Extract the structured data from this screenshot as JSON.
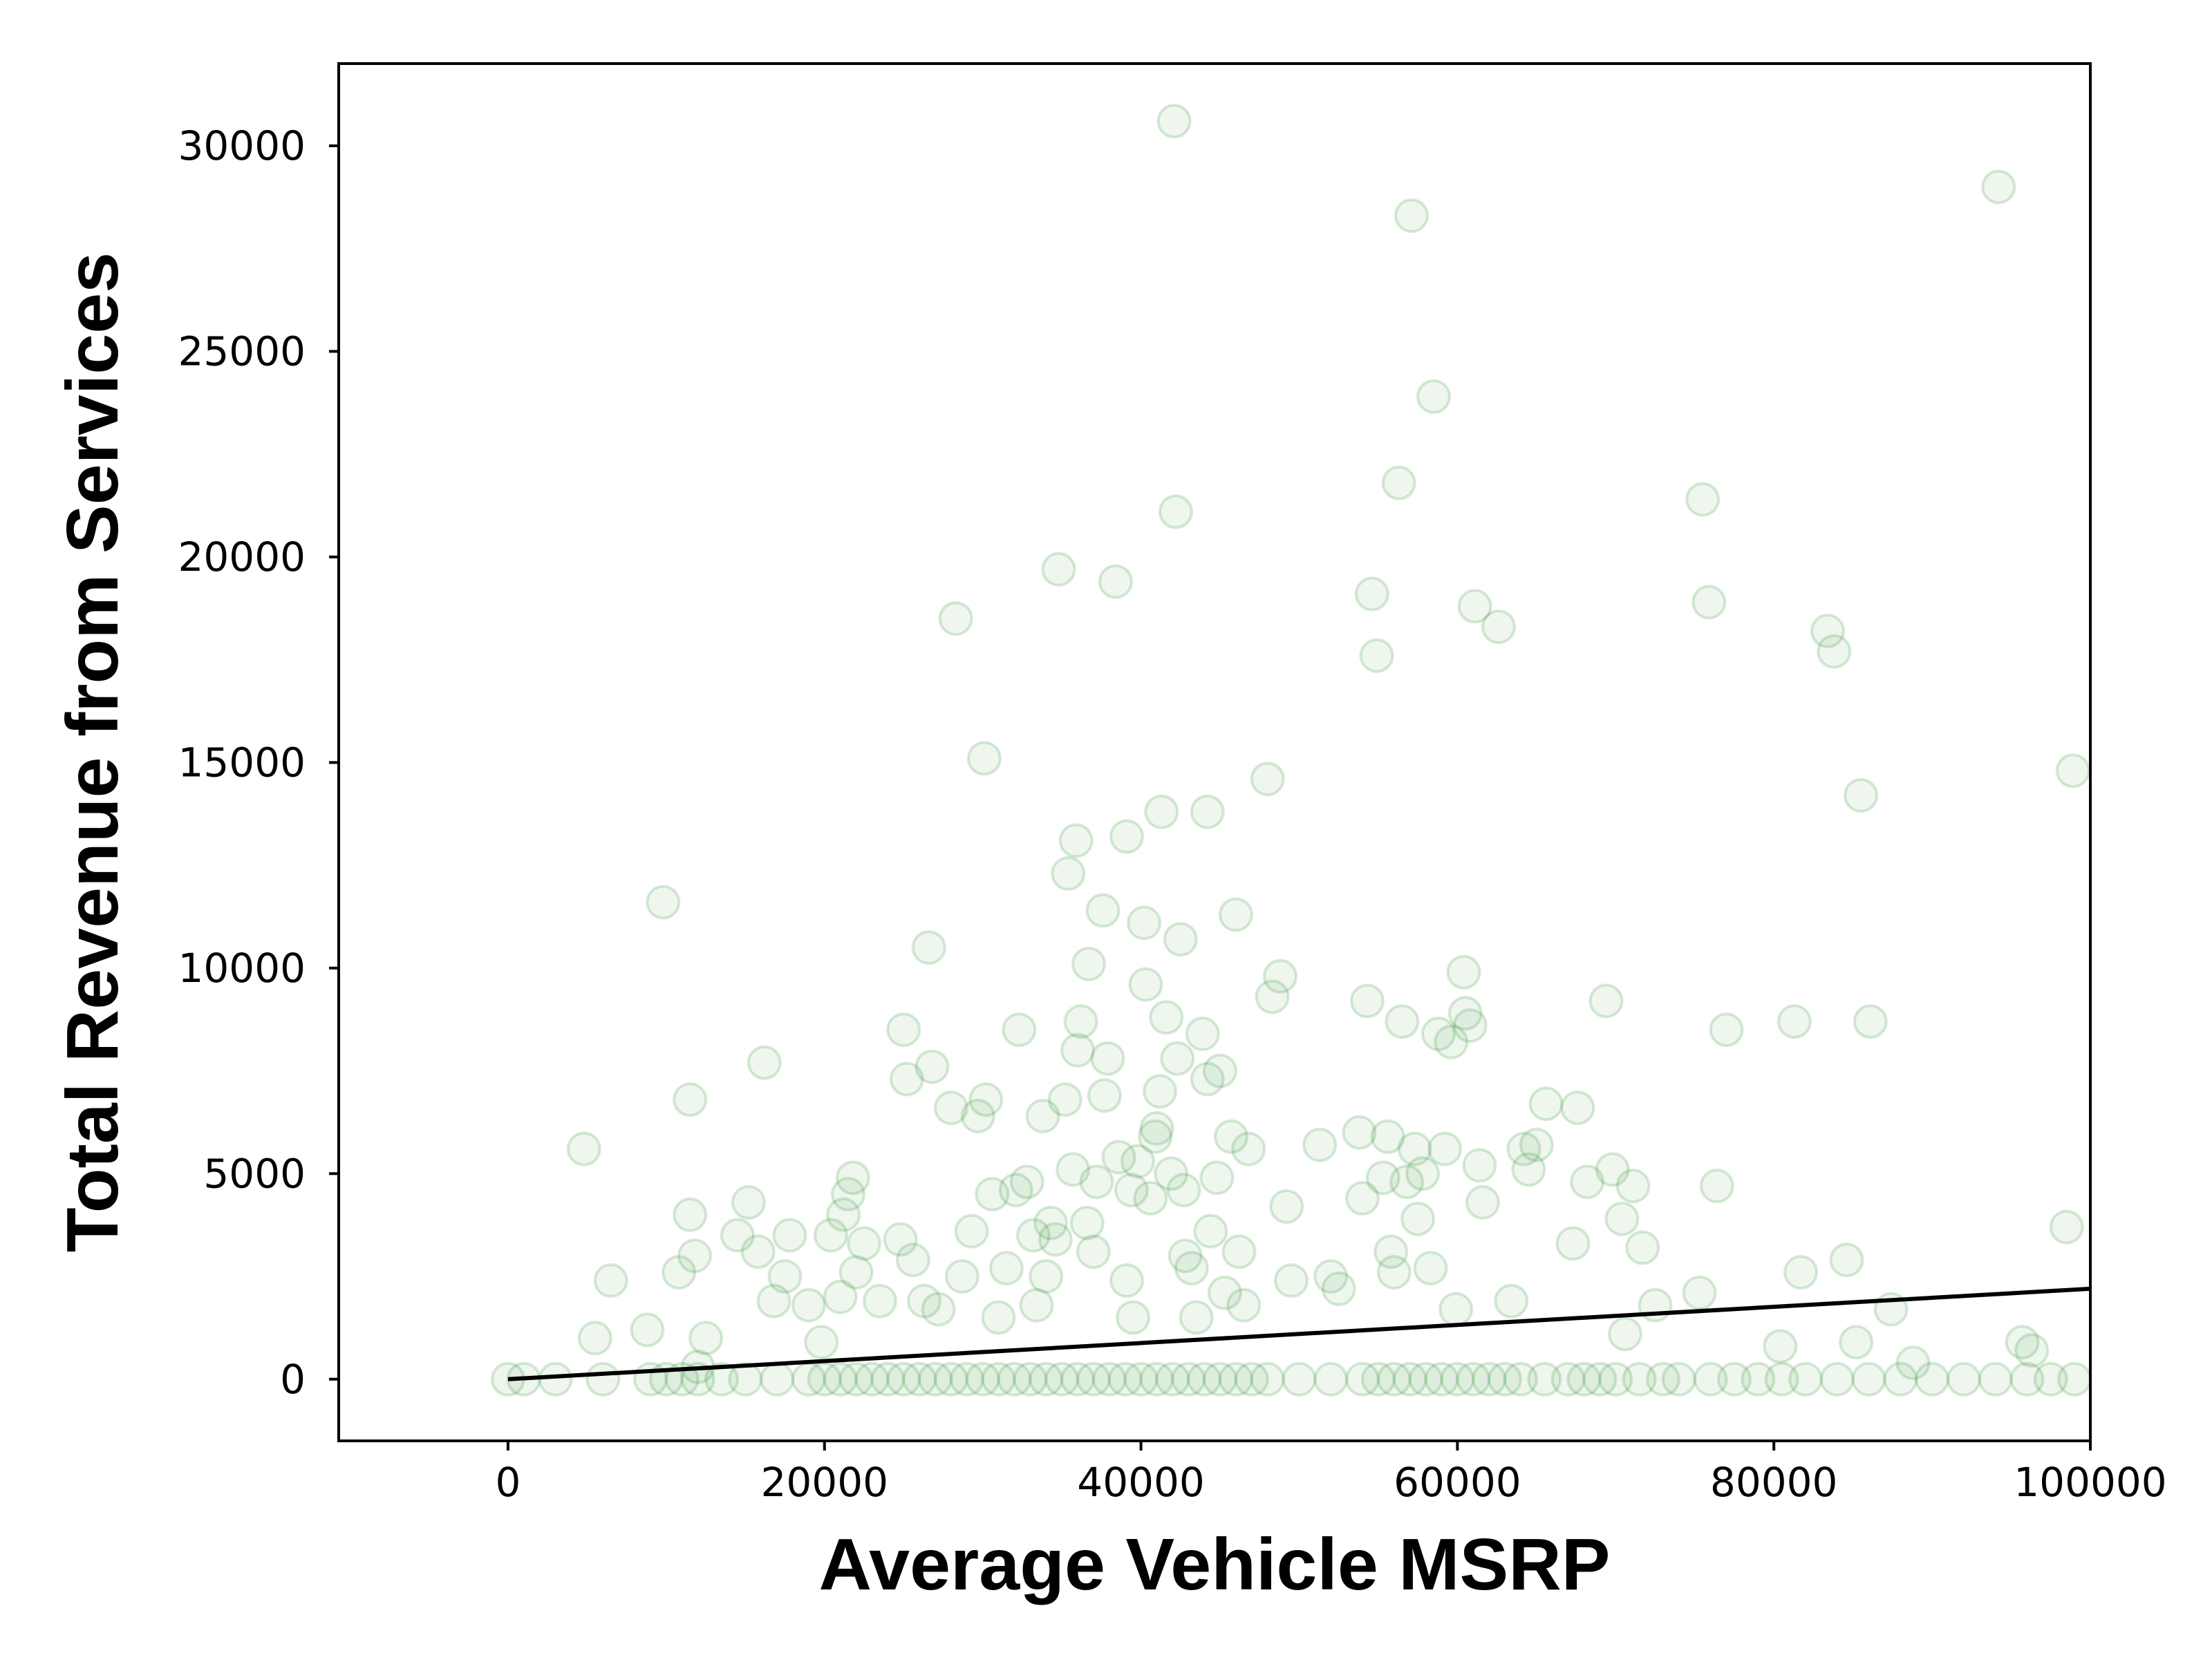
{
  "chart_data": {
    "type": "scatter",
    "xlabel": "Average Vehicle MSRP",
    "ylabel": "Total Revenue from Services",
    "xlim": [
      -10700,
      100000
    ],
    "ylim": [
      -1500,
      32000
    ],
    "xticks": [
      0,
      20000,
      40000,
      60000,
      80000,
      100000
    ],
    "yticks": [
      0,
      5000,
      10000,
      15000,
      20000,
      25000,
      30000
    ],
    "grid": false,
    "legend": "none",
    "colors": {
      "points": "#228B22",
      "trend_line": "#000000",
      "axes": "#000000"
    },
    "series": [
      {
        "points": [
          [
            0,
            0
          ],
          [
            1000,
            0
          ],
          [
            3000,
            0
          ],
          [
            6000,
            0
          ],
          [
            9000,
            0
          ],
          [
            10000,
            0
          ],
          [
            11000,
            0
          ],
          [
            12000,
            0
          ],
          [
            13500,
            0
          ],
          [
            15000,
            0
          ],
          [
            17000,
            0
          ],
          [
            19000,
            0
          ],
          [
            20000,
            0
          ],
          [
            21000,
            0
          ],
          [
            22000,
            0
          ],
          [
            23000,
            0
          ],
          [
            24000,
            0
          ],
          [
            25000,
            0
          ],
          [
            26000,
            0
          ],
          [
            27000,
            0
          ],
          [
            28000,
            0
          ],
          [
            29000,
            0
          ],
          [
            30000,
            0
          ],
          [
            31000,
            0
          ],
          [
            32000,
            0
          ],
          [
            33000,
            0
          ],
          [
            34000,
            0
          ],
          [
            35000,
            0
          ],
          [
            36000,
            0
          ],
          [
            37000,
            0
          ],
          [
            38000,
            0
          ],
          [
            39000,
            0
          ],
          [
            40000,
            0
          ],
          [
            41000,
            0
          ],
          [
            42000,
            0
          ],
          [
            43000,
            0
          ],
          [
            44000,
            0
          ],
          [
            45000,
            0
          ],
          [
            46000,
            0
          ],
          [
            47000,
            0
          ],
          [
            48000,
            0
          ],
          [
            50000,
            0
          ],
          [
            52000,
            0
          ],
          [
            54000,
            0
          ],
          [
            55000,
            0
          ],
          [
            56000,
            0
          ],
          [
            57000,
            0
          ],
          [
            58000,
            0
          ],
          [
            59000,
            0
          ],
          [
            60000,
            0
          ],
          [
            61000,
            0
          ],
          [
            62000,
            0
          ],
          [
            63000,
            0
          ],
          [
            64000,
            0
          ],
          [
            65500,
            0
          ],
          [
            67000,
            0
          ],
          [
            68000,
            0
          ],
          [
            69000,
            0
          ],
          [
            70000,
            0
          ],
          [
            71500,
            0
          ],
          [
            73000,
            0
          ],
          [
            74000,
            0
          ],
          [
            76000,
            0
          ],
          [
            77500,
            0
          ],
          [
            79000,
            0
          ],
          [
            80500,
            0
          ],
          [
            82000,
            0
          ],
          [
            84000,
            0
          ],
          [
            86000,
            0
          ],
          [
            88000,
            0
          ],
          [
            90000,
            0
          ],
          [
            92000,
            0
          ],
          [
            94000,
            0
          ],
          [
            96000,
            0
          ],
          [
            97500,
            0
          ],
          [
            99000,
            0
          ],
          [
            4800,
            5600
          ],
          [
            6500,
            2400
          ],
          [
            5500,
            1000
          ],
          [
            8800,
            1200
          ],
          [
            9800,
            11600
          ],
          [
            11500,
            6800
          ],
          [
            11800,
            3000
          ],
          [
            11500,
            4000
          ],
          [
            10800,
            2600
          ],
          [
            12500,
            1000
          ],
          [
            12000,
            300
          ],
          [
            14500,
            3500
          ],
          [
            15200,
            4300
          ],
          [
            15800,
            3100
          ],
          [
            16200,
            7700
          ],
          [
            16800,
            1900
          ],
          [
            17500,
            2500
          ],
          [
            17800,
            3500
          ],
          [
            19000,
            1800
          ],
          [
            19800,
            900
          ],
          [
            20400,
            3500
          ],
          [
            21000,
            2000
          ],
          [
            21200,
            4000
          ],
          [
            21500,
            4500
          ],
          [
            21800,
            4900
          ],
          [
            22000,
            2600
          ],
          [
            22500,
            3300
          ],
          [
            23500,
            1900
          ],
          [
            24800,
            3400
          ],
          [
            25000,
            8500
          ],
          [
            25200,
            7300
          ],
          [
            25600,
            2900
          ],
          [
            26300,
            1900
          ],
          [
            26600,
            10500
          ],
          [
            26800,
            7600
          ],
          [
            27200,
            1700
          ],
          [
            28000,
            6600
          ],
          [
            28300,
            18500
          ],
          [
            28700,
            2500
          ],
          [
            29300,
            3600
          ],
          [
            29700,
            6400
          ],
          [
            30100,
            15100
          ],
          [
            30200,
            6800
          ],
          [
            30600,
            4500
          ],
          [
            31000,
            1500
          ],
          [
            31500,
            2700
          ],
          [
            32100,
            4600
          ],
          [
            32300,
            8500
          ],
          [
            32800,
            4800
          ],
          [
            33200,
            3500
          ],
          [
            33400,
            1800
          ],
          [
            33800,
            6400
          ],
          [
            34000,
            2500
          ],
          [
            34300,
            3800
          ],
          [
            34600,
            3400
          ],
          [
            34800,
            19700
          ],
          [
            35200,
            6800
          ],
          [
            35400,
            12300
          ],
          [
            35700,
            5100
          ],
          [
            35900,
            13100
          ],
          [
            36000,
            8000
          ],
          [
            36200,
            8700
          ],
          [
            36600,
            3800
          ],
          [
            36700,
            10100
          ],
          [
            37000,
            3100
          ],
          [
            37200,
            4800
          ],
          [
            37600,
            11400
          ],
          [
            37700,
            6900
          ],
          [
            37900,
            7800
          ],
          [
            38400,
            19400
          ],
          [
            38600,
            5400
          ],
          [
            39100,
            13200
          ],
          [
            39100,
            2400
          ],
          [
            39400,
            4600
          ],
          [
            39500,
            1500
          ],
          [
            39800,
            5300
          ],
          [
            40200,
            11100
          ],
          [
            40300,
            9600
          ],
          [
            40600,
            4400
          ],
          [
            40900,
            5900
          ],
          [
            41000,
            6100
          ],
          [
            41200,
            7000
          ],
          [
            41300,
            13800
          ],
          [
            41600,
            8800
          ],
          [
            41900,
            5000
          ],
          [
            42100,
            30600
          ],
          [
            42200,
            21100
          ],
          [
            42300,
            7800
          ],
          [
            42500,
            10700
          ],
          [
            42700,
            4600
          ],
          [
            42800,
            3000
          ],
          [
            43200,
            2700
          ],
          [
            43500,
            1500
          ],
          [
            43900,
            8400
          ],
          [
            44200,
            13800
          ],
          [
            44200,
            7300
          ],
          [
            44400,
            3600
          ],
          [
            44800,
            4900
          ],
          [
            45000,
            7500
          ],
          [
            45300,
            2100
          ],
          [
            45700,
            5900
          ],
          [
            46000,
            11300
          ],
          [
            46200,
            3100
          ],
          [
            46500,
            1800
          ],
          [
            46800,
            5600
          ],
          [
            48000,
            14600
          ],
          [
            48300,
            9300
          ],
          [
            48800,
            9800
          ],
          [
            49200,
            4200
          ],
          [
            49500,
            2400
          ],
          [
            51300,
            5700
          ],
          [
            52000,
            2500
          ],
          [
            52500,
            2200
          ],
          [
            53800,
            6000
          ],
          [
            54000,
            4400
          ],
          [
            54300,
            9200
          ],
          [
            54600,
            19100
          ],
          [
            54900,
            17600
          ],
          [
            55300,
            4900
          ],
          [
            55600,
            5900
          ],
          [
            55800,
            3100
          ],
          [
            56000,
            2600
          ],
          [
            56300,
            21800
          ],
          [
            56500,
            8700
          ],
          [
            56800,
            4800
          ],
          [
            57100,
            28300
          ],
          [
            57300,
            5600
          ],
          [
            57500,
            3900
          ],
          [
            57800,
            5000
          ],
          [
            58300,
            2700
          ],
          [
            58500,
            23900
          ],
          [
            58800,
            8400
          ],
          [
            59200,
            5600
          ],
          [
            59600,
            8200
          ],
          [
            59900,
            1700
          ],
          [
            60400,
            9900
          ],
          [
            60500,
            8900
          ],
          [
            60800,
            8600
          ],
          [
            61100,
            18800
          ],
          [
            61400,
            5200
          ],
          [
            61600,
            4300
          ],
          [
            62600,
            18300
          ],
          [
            63400,
            1900
          ],
          [
            64200,
            5600
          ],
          [
            64500,
            5100
          ],
          [
            65000,
            5700
          ],
          [
            65600,
            6700
          ],
          [
            67300,
            3300
          ],
          [
            67600,
            6600
          ],
          [
            68200,
            4800
          ],
          [
            69400,
            9200
          ],
          [
            69800,
            5100
          ],
          [
            70400,
            3900
          ],
          [
            70600,
            1100
          ],
          [
            71100,
            4700
          ],
          [
            71700,
            3200
          ],
          [
            72500,
            1800
          ],
          [
            75300,
            2100
          ],
          [
            75500,
            21400
          ],
          [
            75900,
            18900
          ],
          [
            76400,
            4700
          ],
          [
            77000,
            8500
          ],
          [
            80400,
            800
          ],
          [
            81300,
            8700
          ],
          [
            81700,
            2600
          ],
          [
            83400,
            18200
          ],
          [
            83800,
            17700
          ],
          [
            84600,
            2900
          ],
          [
            85200,
            900
          ],
          [
            85500,
            14200
          ],
          [
            86100,
            8700
          ],
          [
            87400,
            1700
          ],
          [
            88800,
            400
          ],
          [
            94200,
            29000
          ],
          [
            95700,
            900
          ],
          [
            96300,
            700
          ],
          [
            98500,
            3700
          ],
          [
            98900,
            14800
          ]
        ]
      }
    ],
    "trend_line": {
      "x": [
        0,
        100000
      ],
      "y": [
        0,
        2200
      ]
    }
  }
}
